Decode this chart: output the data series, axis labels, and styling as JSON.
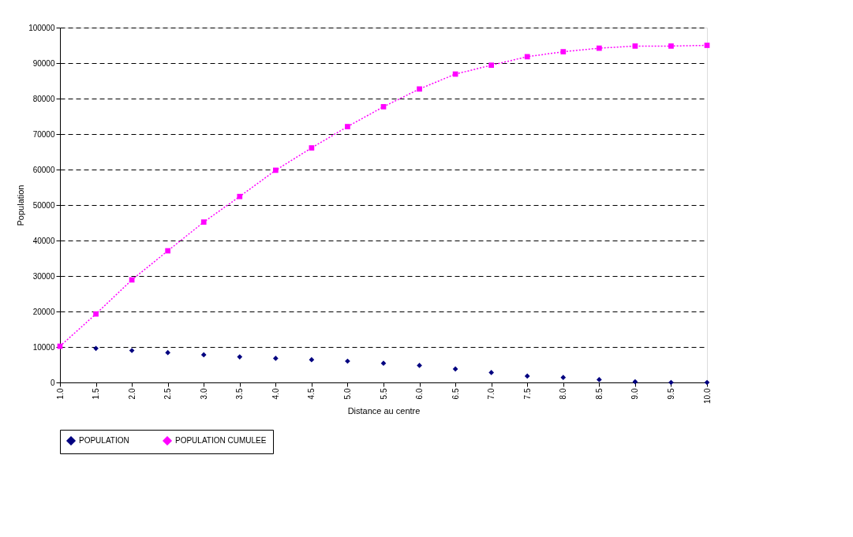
{
  "chart_data": {
    "type": "line",
    "xlabel": "Distance au centre",
    "ylabel": "Population",
    "categories": [
      "1.0",
      "1.5",
      "2.0",
      "2.5",
      "3.0",
      "3.5",
      "4.0",
      "4.5",
      "5.0",
      "5.5",
      "6.0",
      "6.5",
      "7.0",
      "7.5",
      "8.0",
      "8.5",
      "9.0",
      "9.5",
      "10.0"
    ],
    "series": [
      {
        "name": "POPULATION",
        "type": "scatter",
        "color": "#000080",
        "marker": "diamond",
        "values": [
          null,
          9600,
          9000,
          8400,
          7800,
          7200,
          6800,
          6400,
          6000,
          5400,
          4800,
          3800,
          2800,
          1800,
          1400,
          800,
          200,
          0,
          0
        ]
      },
      {
        "name": "POPULATION CUMULEE",
        "line_style": "dotted",
        "color": "#ff00ff",
        "marker": "square",
        "values": [
          10200,
          19300,
          28900,
          37100,
          45200,
          52400,
          59800,
          66100,
          72100,
          77700,
          82700,
          86900,
          89400,
          91800,
          93200,
          94200,
          94800,
          94800,
          95000
        ]
      }
    ],
    "ylim": [
      0,
      100000
    ],
    "yticks": [
      0,
      10000,
      20000,
      30000,
      40000,
      50000,
      60000,
      70000,
      80000,
      90000,
      100000
    ],
    "grid": "y",
    "legend": "bottom"
  }
}
